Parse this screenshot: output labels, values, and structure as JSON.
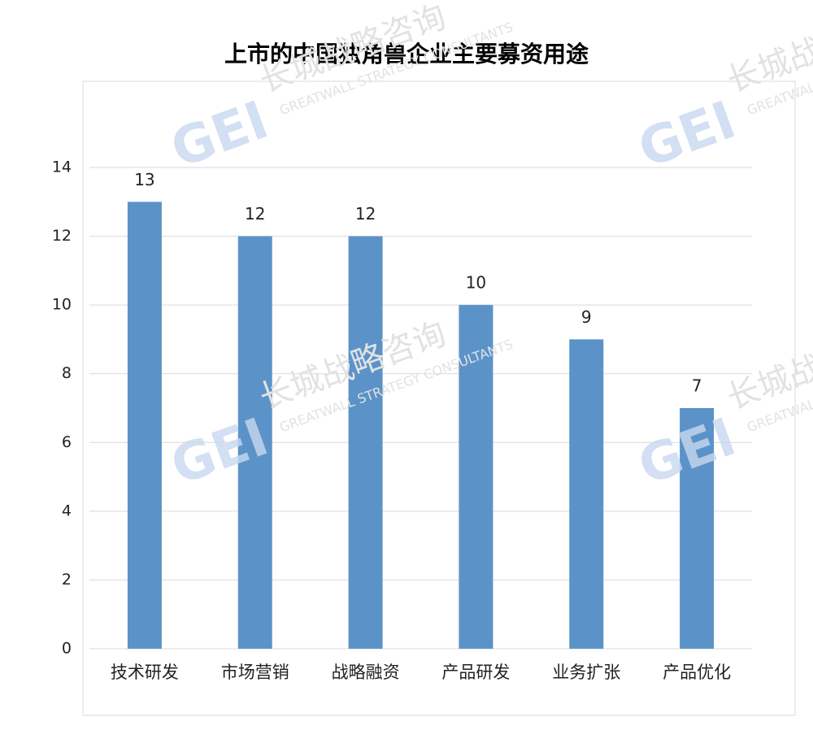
{
  "chart_data": {
    "type": "bar",
    "title": "上市的中国独角兽企业主要募资用途",
    "categories": [
      "技术研发",
      "市场营销",
      "战略融资",
      "产品研发",
      "业务扩张",
      "产品优化"
    ],
    "values": [
      13,
      12,
      12,
      10,
      9,
      7
    ],
    "color": "#5b93c9",
    "ylim": [
      0,
      14
    ],
    "yticks": [
      0,
      2,
      4,
      6,
      8,
      10,
      12,
      14
    ],
    "grid": true,
    "watermark": {
      "logo": "GEI",
      "name": "长城战略咨询",
      "english": "GREATWALL STRATEGY CONSULTANTS"
    }
  }
}
